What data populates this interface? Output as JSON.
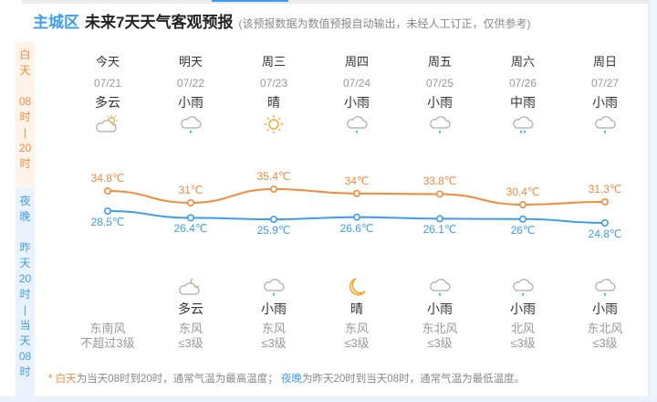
{
  "header": {
    "city": "主城区",
    "title": "未来7天天气客观预报",
    "note": "(该预报数据为数值预报自动输出，未经人工订正，仅供参考)"
  },
  "side": {
    "day_chars": [
      "白",
      "天",
      "",
      "08",
      "时",
      "|",
      "20",
      "时"
    ],
    "night_chars": [
      "夜",
      "晚",
      "",
      "昨",
      "天",
      "20",
      "时",
      "|",
      "当",
      "天",
      "08",
      "时"
    ]
  },
  "colors": {
    "accent_blue": "#3d9cf0",
    "accent_orange": "#f28b3c"
  },
  "days": [
    {
      "weekday": "今天",
      "date": "07/21",
      "day_cond": "多云",
      "day_icon": "partly-cloudy-day-icon",
      "night_cond": "",
      "night_icon": "",
      "wind_dir": "东南风",
      "wind_level": "不超过3级"
    },
    {
      "weekday": "明天",
      "date": "07/22",
      "day_cond": "小雨",
      "day_icon": "light-rain-icon",
      "night_cond": "多云",
      "night_icon": "partly-cloudy-night-icon",
      "wind_dir": "东风",
      "wind_level": "≤3级"
    },
    {
      "weekday": "周三",
      "date": "07/23",
      "day_cond": "晴",
      "day_icon": "sunny-icon",
      "night_cond": "小雨",
      "night_icon": "light-rain-icon",
      "wind_dir": "东风",
      "wind_level": "≤3级"
    },
    {
      "weekday": "周四",
      "date": "07/24",
      "day_cond": "小雨",
      "day_icon": "light-rain-icon",
      "night_cond": "晴",
      "night_icon": "moon-icon",
      "wind_dir": "东风",
      "wind_level": "≤3级"
    },
    {
      "weekday": "周五",
      "date": "07/25",
      "day_cond": "小雨",
      "day_icon": "light-rain-icon",
      "night_cond": "小雨",
      "night_icon": "light-rain-icon",
      "wind_dir": "东北风",
      "wind_level": "≤3级"
    },
    {
      "weekday": "周六",
      "date": "07/26",
      "day_cond": "中雨",
      "day_icon": "moderate-rain-icon",
      "night_cond": "小雨",
      "night_icon": "light-rain-icon",
      "wind_dir": "北风",
      "wind_level": "≤3级"
    },
    {
      "weekday": "周日",
      "date": "07/27",
      "day_cond": "小雨",
      "day_icon": "light-rain-icon",
      "night_cond": "小雨",
      "night_icon": "light-rain-icon",
      "wind_dir": "东北风",
      "wind_level": "≤3级"
    }
  ],
  "temps": {
    "high": [
      34.8,
      31,
      35.4,
      34,
      33.8,
      30.4,
      31.3
    ],
    "low": [
      28.5,
      26.4,
      25.9,
      26.6,
      26.1,
      26,
      24.8
    ],
    "high_labels": [
      "34.8℃",
      "31℃",
      "35.4℃",
      "34℃",
      "33.8℃",
      "30.4℃",
      "31.3℃"
    ],
    "low_labels": [
      "28.5℃",
      "26.4℃",
      "25.9℃",
      "26.6℃",
      "26.1℃",
      "26℃",
      "24.8℃"
    ]
  },
  "footnote": {
    "star": "*",
    "day_label": "白天",
    "day_text": "为当天08时到20时，通常气温为最高温度；",
    "night_label": "夜晚",
    "night_text": "为昨天20时到当天08时，通常气温为最低温度。"
  }
}
